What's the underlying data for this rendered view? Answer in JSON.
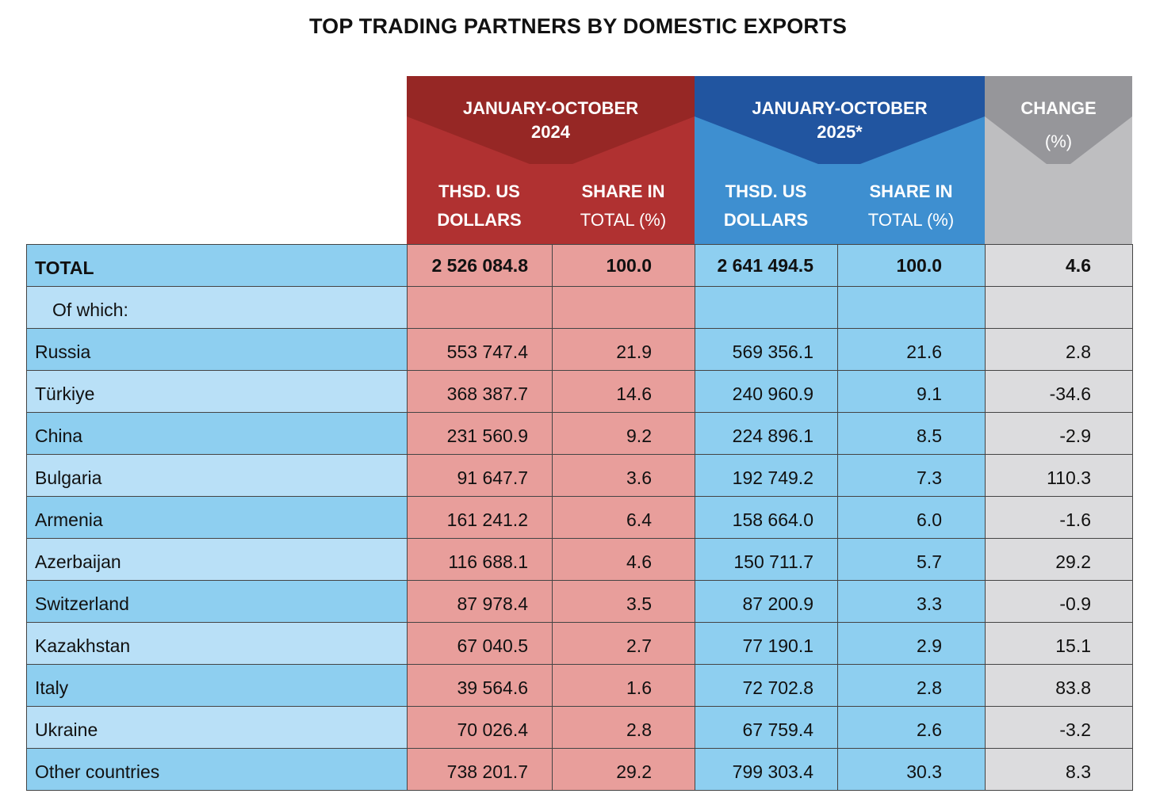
{
  "title": "TOP TRADING PARTNERS BY DOMESTIC EXPORTS",
  "header": {
    "period_2024": [
      "JANUARY-OCTOBER",
      "2024"
    ],
    "period_2025": [
      "JANUARY-OCTOBER",
      "2025*"
    ],
    "change": [
      "CHANGE",
      "(%)"
    ],
    "col_dollars": [
      "THSD. US",
      "DOLLARS"
    ],
    "col_share": [
      "SHARE IN",
      "TOTAL (%)"
    ]
  },
  "colors": {
    "red_dark": "#962725",
    "red": "#b03131",
    "red_cell": "#e89e9b",
    "blue_dark": "#2155a0",
    "blue": "#3e8fd0",
    "blue_cell": "#8ecff0",
    "blue_light": "#b9e0f7",
    "gray_dark": "#96969a",
    "gray": "#bebec0",
    "gray_cell": "#dcdcde"
  },
  "rows": [
    {
      "name": "TOTAL",
      "v": [
        "2 526 084.8",
        "100.0",
        "2 641 494.5",
        "100.0",
        "4.6"
      ],
      "bold": true
    },
    {
      "name": "Of which:",
      "v": [
        "",
        "",
        "",
        "",
        ""
      ],
      "indent": true
    },
    {
      "name": "Russia",
      "v": [
        "553 747.4",
        "21.9",
        "569 356.1",
        "21.6",
        "2.8"
      ]
    },
    {
      "name": "Türkiye",
      "v": [
        "368 387.7",
        "14.6",
        "240 960.9",
        "9.1",
        "-34.6"
      ]
    },
    {
      "name": "China",
      "v": [
        "231 560.9",
        "9.2",
        "224 896.1",
        "8.5",
        "-2.9"
      ]
    },
    {
      "name": "Bulgaria",
      "v": [
        "91 647.7",
        "3.6",
        "192 749.2",
        "7.3",
        "110.3"
      ]
    },
    {
      "name": "Armenia",
      "v": [
        "161 241.2",
        "6.4",
        "158 664.0",
        "6.0",
        "-1.6"
      ]
    },
    {
      "name": "Azerbaijan",
      "v": [
        "116 688.1",
        "4.6",
        "150 711.7",
        "5.7",
        "29.2"
      ]
    },
    {
      "name": "Switzerland",
      "v": [
        "87 978.4",
        "3.5",
        "87 200.9",
        "3.3",
        "-0.9"
      ]
    },
    {
      "name": "Kazakhstan",
      "v": [
        "67 040.5",
        "2.7",
        "77 190.1",
        "2.9",
        "15.1"
      ]
    },
    {
      "name": "Italy",
      "v": [
        "39 564.6",
        "1.6",
        "72 702.8",
        "2.8",
        "83.8"
      ]
    },
    {
      "name": "Ukraine",
      "v": [
        "70 026.4",
        "2.8",
        "67 759.4",
        "2.6",
        "-3.2"
      ]
    },
    {
      "name": "Other countries",
      "v": [
        "738 201.7",
        "29.2",
        "799 303.4",
        "30.3",
        "8.3"
      ]
    }
  ]
}
